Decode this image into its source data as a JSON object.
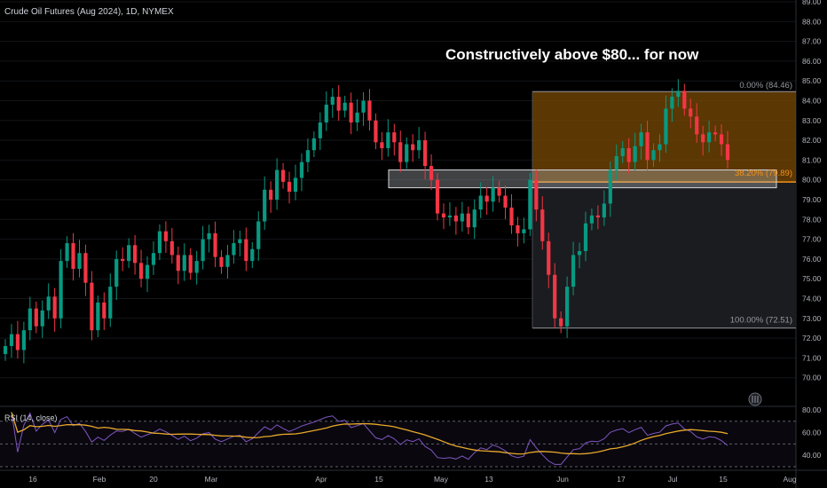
{
  "header": {
    "instrument": "Crude Oil Futures (Aug 2024), 1D, NYMEX"
  },
  "annotation": "Constructively above $80... for now",
  "rsi": {
    "label": "RSI (14, close)",
    "levels": [
      80,
      60,
      40
    ],
    "ref_lines": [
      70,
      50,
      30
    ],
    "ylim": [
      30,
      80
    ]
  },
  "colors": {
    "up": "#089981",
    "down": "#f23645",
    "fib_fill": "#7a4a04",
    "fib_line": "#f7931a",
    "rsi_line": "#7e57c2",
    "rsi_ma": "#e8a92b"
  },
  "chart_data": {
    "type": "candlestick",
    "ylim": [
      69.5,
      89.0
    ],
    "y_ticks": [
      "89.00",
      "88.00",
      "87.00",
      "86.00",
      "85.00",
      "84.00",
      "83.00",
      "82.00",
      "81.00",
      "80.00",
      "79.00",
      "78.00",
      "77.00",
      "76.00",
      "75.00",
      "74.00",
      "73.00",
      "72.00",
      "71.00",
      "70.00"
    ],
    "x_ticks": [
      "16",
      "Feb",
      "20",
      "Mar",
      "Apr",
      "15",
      "May",
      "13",
      "Jun",
      "17",
      "Jul",
      "15",
      "Aug"
    ],
    "fibonacci": [
      {
        "level": "0.00% (84.46)",
        "value": 84.46
      },
      {
        "level": "38.20% (79.89)",
        "value": 79.89
      },
      {
        "level": "100.00% (72.51)",
        "value": 72.51
      }
    ],
    "support_zone": [
      79.6,
      80.5
    ],
    "close_approx": [
      71.6,
      72.2,
      71.4,
      72.4,
      73.5,
      72.6,
      73.4,
      74.1,
      73.0,
      75.9,
      76.8,
      75.5,
      76.3,
      74.8,
      72.4,
      73.8,
      73.0,
      74.6,
      76.0,
      75.9,
      76.7,
      75.8,
      75.0,
      75.7,
      76.3,
      77.4,
      76.9,
      76.2,
      75.4,
      76.2,
      75.3,
      75.9,
      77.0,
      77.3,
      76.1,
      75.6,
      76.2,
      76.8,
      77.0,
      75.9,
      76.5,
      77.9,
      79.5,
      79.0,
      80.5,
      79.9,
      79.4,
      80.1,
      80.9,
      81.5,
      82.1,
      82.9,
      83.8,
      84.2,
      83.5,
      83.9,
      82.9,
      83.4,
      84.0,
      83.0,
      81.9,
      81.6,
      82.4,
      81.9,
      80.9,
      81.8,
      81.5,
      82.0,
      80.7,
      80.0,
      78.3,
      78.1,
      78.2,
      77.9,
      78.3,
      77.6,
      78.5,
      79.2,
      78.9,
      79.6,
      79.2,
      78.6,
      77.7,
      77.3,
      77.5,
      80.0,
      78.5,
      76.9,
      75.2,
      73.0,
      72.6,
      74.6,
      76.2,
      76.4,
      77.8,
      78.2,
      78.1,
      78.8,
      80.5,
      81.2,
      81.6,
      80.9,
      81.7,
      82.4,
      81.0,
      81.5,
      81.8,
      83.6,
      84.2,
      84.5,
      83.6,
      83.2,
      82.3,
      81.9,
      82.4,
      82.3,
      81.8,
      81.0
    ]
  }
}
